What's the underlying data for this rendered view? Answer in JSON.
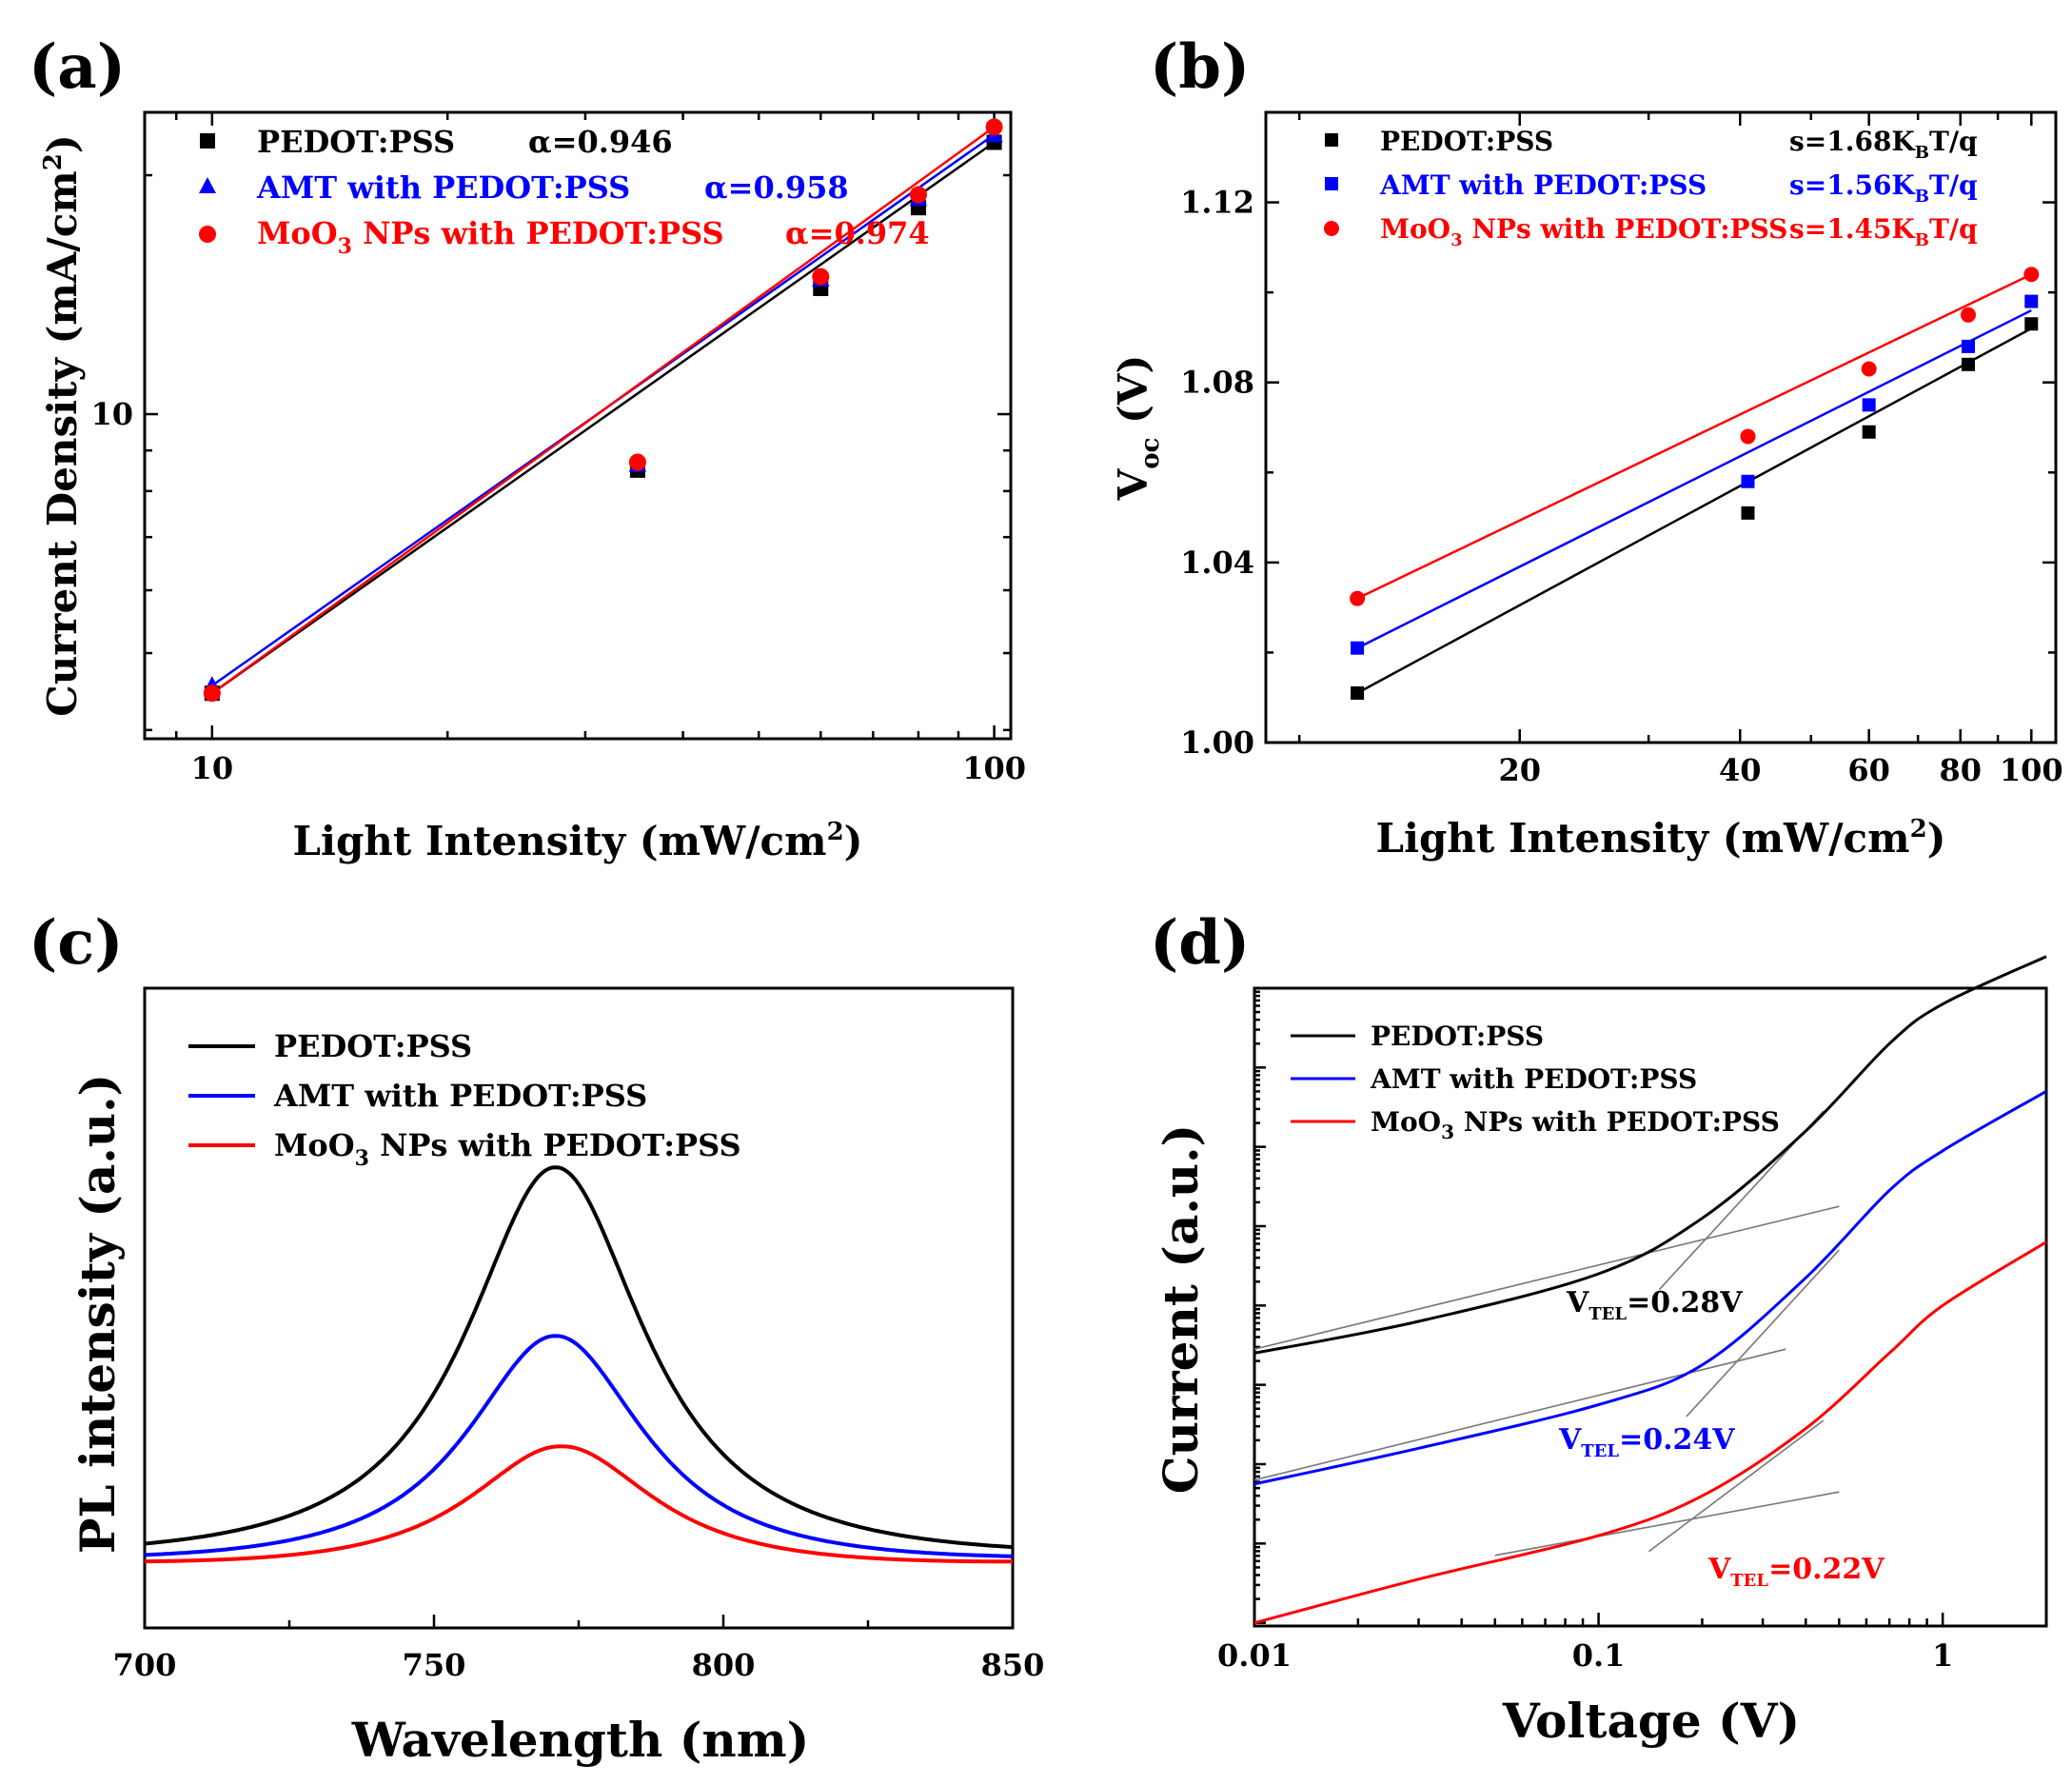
{
  "chart_data": [
    {
      "panel": "(a)",
      "type": "scatter",
      "xlabel": "Light Intensity (mW/cm",
      "xlabel_sup": "2",
      "xlabel_end": ")",
      "ylabel": "Current Density (mA/cm",
      "ylabel_sup": "2",
      "ylabel_end": ")",
      "xscale": "log",
      "yscale": "log",
      "xlim": [
        8.2,
        105
      ],
      "ylim": [
        3.9,
        24
      ],
      "xticks": [
        {
          "v": 10,
          "label": "10"
        },
        {
          "v": 100,
          "label": "100"
        }
      ],
      "yticks": [
        {
          "v": 10,
          "label": "10"
        }
      ],
      "legend_position": "top-left",
      "series": [
        {
          "name": "PEDOT:PSS",
          "name_main": "PEDOT:PSS",
          "name_sub": "",
          "name_rest": "",
          "annotation": "α=0.946",
          "color": "#000000",
          "marker": "square",
          "x": [
            10,
            35,
            60,
            80,
            100
          ],
          "y": [
            4.45,
            8.5,
            14.4,
            18.2,
            22.0
          ],
          "fit": [
            [
              10,
              4.45
            ],
            [
              100,
              22.0
            ]
          ]
        },
        {
          "name": "AMT with PEDOT:PSS",
          "name_main": "AMT with PEDOT:PSS",
          "name_sub": "",
          "name_rest": "",
          "annotation": "α=0.958",
          "color": "#0000ff",
          "marker": "triangle",
          "x": [
            10,
            35,
            60,
            80,
            100
          ],
          "y": [
            4.55,
            8.65,
            14.8,
            18.7,
            22.5
          ],
          "fit": [
            [
              10,
              4.55
            ],
            [
              100,
              22.5
            ]
          ]
        },
        {
          "name": "MoO3 NPs with PEDOT:PSS",
          "name_main": "MoO",
          "name_sub": "3",
          "name_rest": " NPs with PEDOT:PSS",
          "annotation": "α=0.974",
          "color": "#ff0000",
          "marker": "circle",
          "x": [
            10,
            35,
            60,
            80,
            100
          ],
          "y": [
            4.45,
            8.7,
            14.9,
            18.9,
            23.0
          ],
          "fit": [
            [
              10,
              4.45
            ],
            [
              100,
              23.0
            ]
          ]
        }
      ]
    },
    {
      "panel": "(b)",
      "type": "scatter",
      "xlabel": "Light Intensity (mW/cm",
      "xlabel_sup": "2",
      "xlabel_end": ")",
      "ylabel_main": "V",
      "ylabel_sub": "oc",
      "ylabel_end": " (V)",
      "xscale": "log",
      "yscale": "linear",
      "xlim": [
        9,
        108
      ],
      "ylim": [
        1.0,
        1.14
      ],
      "xticks": [
        {
          "v": 20,
          "label": "20"
        },
        {
          "v": 40,
          "label": "40"
        },
        {
          "v": 60,
          "label": "60"
        },
        {
          "v": 80,
          "label": "80"
        },
        {
          "v": 100,
          "label": "100"
        }
      ],
      "yticks": [
        {
          "v": 1.0,
          "label": "1.00"
        },
        {
          "v": 1.04,
          "label": "1.04"
        },
        {
          "v": 1.08,
          "label": "1.08"
        },
        {
          "v": 1.12,
          "label": "1.12"
        }
      ],
      "legend_position": "top",
      "series": [
        {
          "name": "PEDOT:PSS",
          "name_main": "PEDOT:PSS",
          "name_sub": "",
          "name_rest": "",
          "annotation": "s=1.68K",
          "ann_sub": "B",
          "ann_end": "T/q",
          "color": "#000000",
          "marker": "square",
          "x": [
            12,
            41,
            60,
            82,
            100
          ],
          "y": [
            1.011,
            1.051,
            1.069,
            1.084,
            1.093
          ],
          "fit": [
            [
              12,
              1.011
            ],
            [
              100,
              1.092
            ]
          ]
        },
        {
          "name": "AMT with PEDOT:PSS",
          "name_main": "AMT with PEDOT:PSS",
          "name_sub": "",
          "name_rest": "",
          "annotation": "s=1.56K",
          "ann_sub": "B",
          "ann_end": "T/q",
          "color": "#0000ff",
          "marker": "square",
          "x": [
            12,
            41,
            60,
            82,
            100
          ],
          "y": [
            1.021,
            1.058,
            1.075,
            1.088,
            1.098
          ],
          "fit": [
            [
              12,
              1.021
            ],
            [
              100,
              1.096
            ]
          ]
        },
        {
          "name": "MoO3 NPs with PEDOT:PSS",
          "name_main": "MoO",
          "name_sub": "3",
          "name_rest": " NPs with PEDOT:PSS",
          "annotation": "s=1.45K",
          "ann_sub": "B",
          "ann_end": "T/q",
          "color": "#ff0000",
          "marker": "circle",
          "x": [
            12,
            41,
            60,
            82,
            100
          ],
          "y": [
            1.032,
            1.068,
            1.083,
            1.095,
            1.104
          ],
          "fit": [
            [
              12,
              1.032
            ],
            [
              100,
              1.104
            ]
          ]
        }
      ]
    },
    {
      "panel": "(c)",
      "type": "line",
      "xlabel": "Wavelength (nm)",
      "ylabel": "PL intensity (a.u.)",
      "xlim": [
        700,
        850
      ],
      "ylim": [
        0,
        1.1
      ],
      "xticks": [
        {
          "v": 700,
          "label": "700"
        },
        {
          "v": 750,
          "label": "750"
        },
        {
          "v": 800,
          "label": "800"
        },
        {
          "v": 850,
          "label": "850"
        }
      ],
      "legend_position": "top-left",
      "series": [
        {
          "name": "PEDOT:PSS",
          "name_main": "PEDOT:PSS",
          "name_sub": "",
          "name_rest": "",
          "color": "#000000",
          "peak_x": 771,
          "amplitude": 0.72,
          "fwhm": 38,
          "baseline": 0.1
        },
        {
          "name": "AMT with PEDOT:PSS",
          "name_main": "AMT with PEDOT:PSS",
          "name_sub": "",
          "name_rest": "",
          "color": "#0000ff",
          "peak_x": 771,
          "amplitude": 0.43,
          "fwhm": 38,
          "baseline": 0.1
        },
        {
          "name": "MoO3 NPs with PEDOT:PSS",
          "name_main": "MoO",
          "name_sub": "3",
          "name_rest": " NPs with PEDOT:PSS",
          "color": "#ff0000",
          "peak_x": 772,
          "amplitude": 0.24,
          "fwhm": 40,
          "baseline": 0.1
        }
      ]
    },
    {
      "panel": "(d)",
      "type": "line",
      "xlabel": "Voltage (V)",
      "ylabel": "Current (a.u.)",
      "xscale": "log",
      "yscale": "log",
      "xlim": [
        0.01,
        2.0
      ],
      "ylim": [
        -4.04,
        4.0
      ],
      "xticks": [
        {
          "v": 0.01,
          "label": "0.01"
        },
        {
          "v": 0.1,
          "label": "0.1"
        },
        {
          "v": 1,
          "label": "1"
        }
      ],
      "legend_position": "top-left",
      "series": [
        {
          "name": "PEDOT:PSS",
          "name_main": "PEDOT:PSS",
          "name_sub": "",
          "name_rest": "",
          "color": "#000000",
          "offset": 0.0,
          "points": [
            [
              0.01,
              -0.6
            ],
            [
              0.03,
              -0.2
            ],
            [
              0.1,
              0.4
            ],
            [
              0.2,
              1.1
            ],
            [
              0.4,
              2.2
            ],
            [
              0.7,
              3.3
            ],
            [
              1.0,
              3.8
            ],
            [
              2.0,
              4.4
            ]
          ],
          "annotation": "V",
          "ann_sub": "TEL",
          "ann_end": "=0.28V",
          "tangent_low": [
            [
              0.01,
              -0.55
            ],
            [
              0.5,
              1.25
            ]
          ],
          "tangent_high": [
            [
              0.15,
              0.2
            ],
            [
              0.45,
              2.45
            ]
          ]
        },
        {
          "name": "AMT with PEDOT:PSS",
          "name_main": "AMT with PEDOT:PSS",
          "name_sub": "",
          "name_rest": "",
          "color": "#0000ff",
          "offset": 0.0,
          "points": [
            [
              0.01,
              -2.25
            ],
            [
              0.03,
              -1.8
            ],
            [
              0.1,
              -1.25
            ],
            [
              0.2,
              -0.75
            ],
            [
              0.4,
              0.35
            ],
            [
              0.7,
              1.45
            ],
            [
              1.0,
              1.95
            ],
            [
              2.0,
              2.7
            ]
          ],
          "annotation": "V",
          "ann_sub": "TEL",
          "ann_end": "=0.24V",
          "tangent_low": [
            [
              0.01,
              -2.2
            ],
            [
              0.35,
              -0.55
            ]
          ],
          "tangent_high": [
            [
              0.18,
              -1.4
            ],
            [
              0.5,
              0.7
            ]
          ]
        },
        {
          "name": "MoO3 NPs with PEDOT:PSS",
          "name_main": "MoO",
          "name_sub": "3",
          "name_rest": " NPs with PEDOT:PSS",
          "color": "#ff0000",
          "offset": 0.0,
          "points": [
            [
              0.01,
              -4.0
            ],
            [
              0.03,
              -3.45
            ],
            [
              0.1,
              -2.9
            ],
            [
              0.2,
              -2.4
            ],
            [
              0.4,
              -1.55
            ],
            [
              0.7,
              -0.6
            ],
            [
              1.0,
              0.0
            ],
            [
              2.0,
              0.8
            ]
          ],
          "annotation": "V",
          "ann_sub": "TEL",
          "ann_end": "=0.22V",
          "tangent_low": [
            [
              0.05,
              -3.15
            ],
            [
              0.5,
              -2.35
            ]
          ],
          "tangent_high": [
            [
              0.14,
              -3.1
            ],
            [
              0.45,
              -1.45
            ]
          ]
        }
      ]
    }
  ]
}
